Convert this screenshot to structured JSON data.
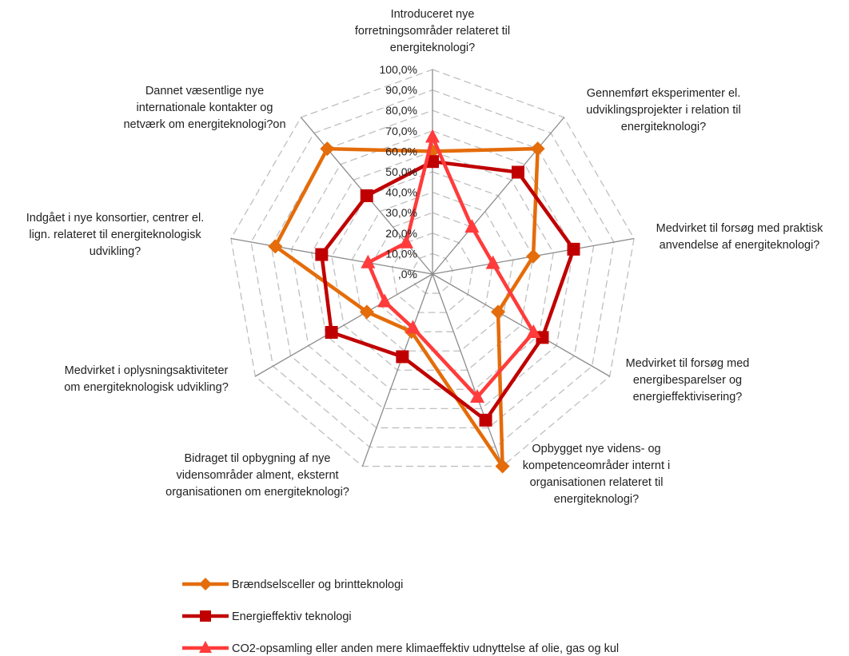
{
  "chart_data": {
    "type": "radar",
    "title": "",
    "categories": [
      "Introduceret nye forretningsområder relateret til energiteknologi?",
      "Gennemført eksperimenter el. udviklingsprojekter i relation til energiteknologi?",
      "Medvirket til forsøg med praktisk anvendelse af energiteknologi?",
      "Medvirket til forsøg med energibesparelser og energieffektivisering?",
      "Opbygget nye videns- og kompetenceområder internt i organisationen relateret til energiteknologi?",
      "Bidraget til opbygning af nye vidensområder alment, eksternt organisationen om energiteknologi?",
      "Medvirket i oplysningsaktiviteter om energiteknologisk udvikling?",
      "Indgået i nye konsortier, centrer el. lign. relateret til energiteknologisk udvikling?",
      "Dannet væsentlige nye internationale kontakter og netværk om energiteknologi?on"
    ],
    "category_lines": [
      [
        "Introduceret nye",
        "forretningsområder relateret til",
        "energiteknologi?"
      ],
      [
        "Gennemført eksperimenter el.",
        "udviklingsprojekter i relation til",
        "energiteknologi?"
      ],
      [
        "Medvirket til forsøg med praktisk",
        "anvendelse af energiteknologi?"
      ],
      [
        "Medvirket til forsøg med",
        "energibesparelser og",
        "energieffektivisering?"
      ],
      [
        "Opbygget nye videns- og",
        "kompetenceområder internt i",
        "organisationen relateret til",
        "energiteknologi?"
      ],
      [
        "Bidraget til opbygning af nye",
        "vidensområder alment, eksternt",
        "organisationen om energiteknologi?"
      ],
      [
        "Medvirket i oplysningsaktiviteter",
        "om energiteknologisk udvikling?"
      ],
      [
        "Indgået i nye konsortier, centrer el.",
        "lign. relateret til energiteknologisk",
        "udvikling?"
      ],
      [
        "Dannet væsentlige nye",
        "internationale kontakter og",
        "netværk om energiteknologi?on"
      ]
    ],
    "rlim": [
      0,
      100
    ],
    "tick_labels": [
      ",0%",
      "10,0%",
      "20,0%",
      "30,0%",
      "40,0%",
      "50,0%",
      "60,0%",
      "70,0%",
      "80,0%",
      "90,0%",
      "100,0%"
    ],
    "grid": true,
    "legend_position": "bottom",
    "series": [
      {
        "name": "Brændselsceller og brintteknologi",
        "values": [
          60,
          80,
          50,
          37,
          100,
          30,
          37,
          78,
          80
        ],
        "color": "#E46C0A",
        "marker": "diamond"
      },
      {
        "name": "Energieffektiv teknologi",
        "values": [
          55,
          65,
          70,
          62,
          76,
          43,
          57,
          55,
          50
        ],
        "color": "#C00000",
        "marker": "square"
      },
      {
        "name": "CO2-opsamling eller anden mere klimaeffektiv udnyttelse af olie, gas og kul",
        "values": [
          67,
          30,
          30,
          57,
          64,
          28,
          27,
          32,
          20
        ],
        "color": "#FF3B3B",
        "marker": "triangle"
      }
    ]
  }
}
